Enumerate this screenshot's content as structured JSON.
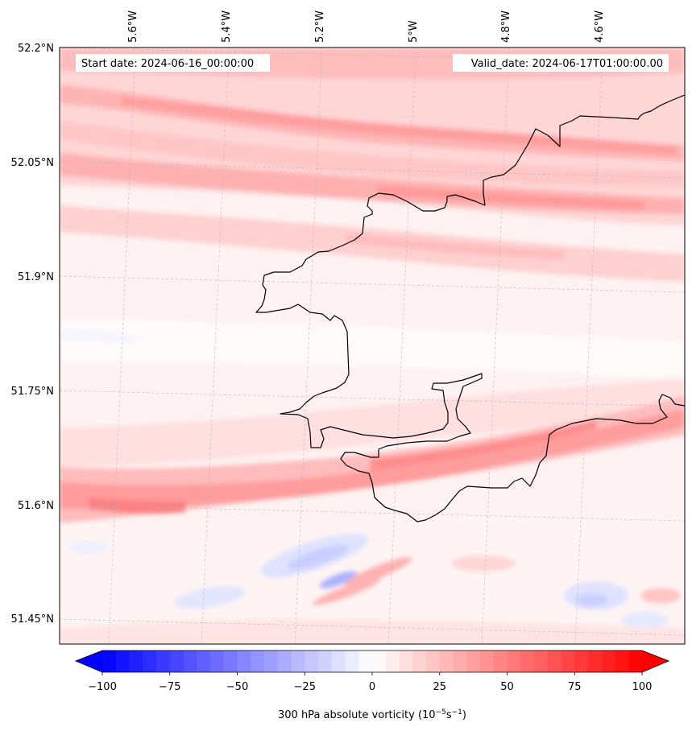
{
  "header": {
    "start_date": "Start date: 2024-06-16_00:00:00",
    "valid_date": "Valid_date: 2024-06-17T01:00:00.00"
  },
  "axes": {
    "lat_labels": [
      "52.2°N",
      "52.05°N",
      "51.9°N",
      "51.75°N",
      "51.6°N",
      "51.45°N"
    ],
    "lon_labels": [
      "5.6°W",
      "5.4°W",
      "5.2°W",
      "5°W",
      "4.8°W",
      "4.6°W"
    ]
  },
  "colorbar": {
    "ticks": [
      "−100",
      "−75",
      "−50",
      "−25",
      "0",
      "25",
      "50",
      "75",
      "100"
    ],
    "label_prefix": "300 hPa absolute vorticity (10",
    "label_exp1": "−5",
    "label_mid": "s",
    "label_exp2": "−1",
    "label_suffix": ")",
    "min": -100,
    "max": 100,
    "levels": 40,
    "colormap": "bwr",
    "extend": "both"
  },
  "colors": {
    "negative": "#0000ff",
    "zero": "#ffffff",
    "positive": "#ff0000",
    "coastline": "#000000"
  }
}
